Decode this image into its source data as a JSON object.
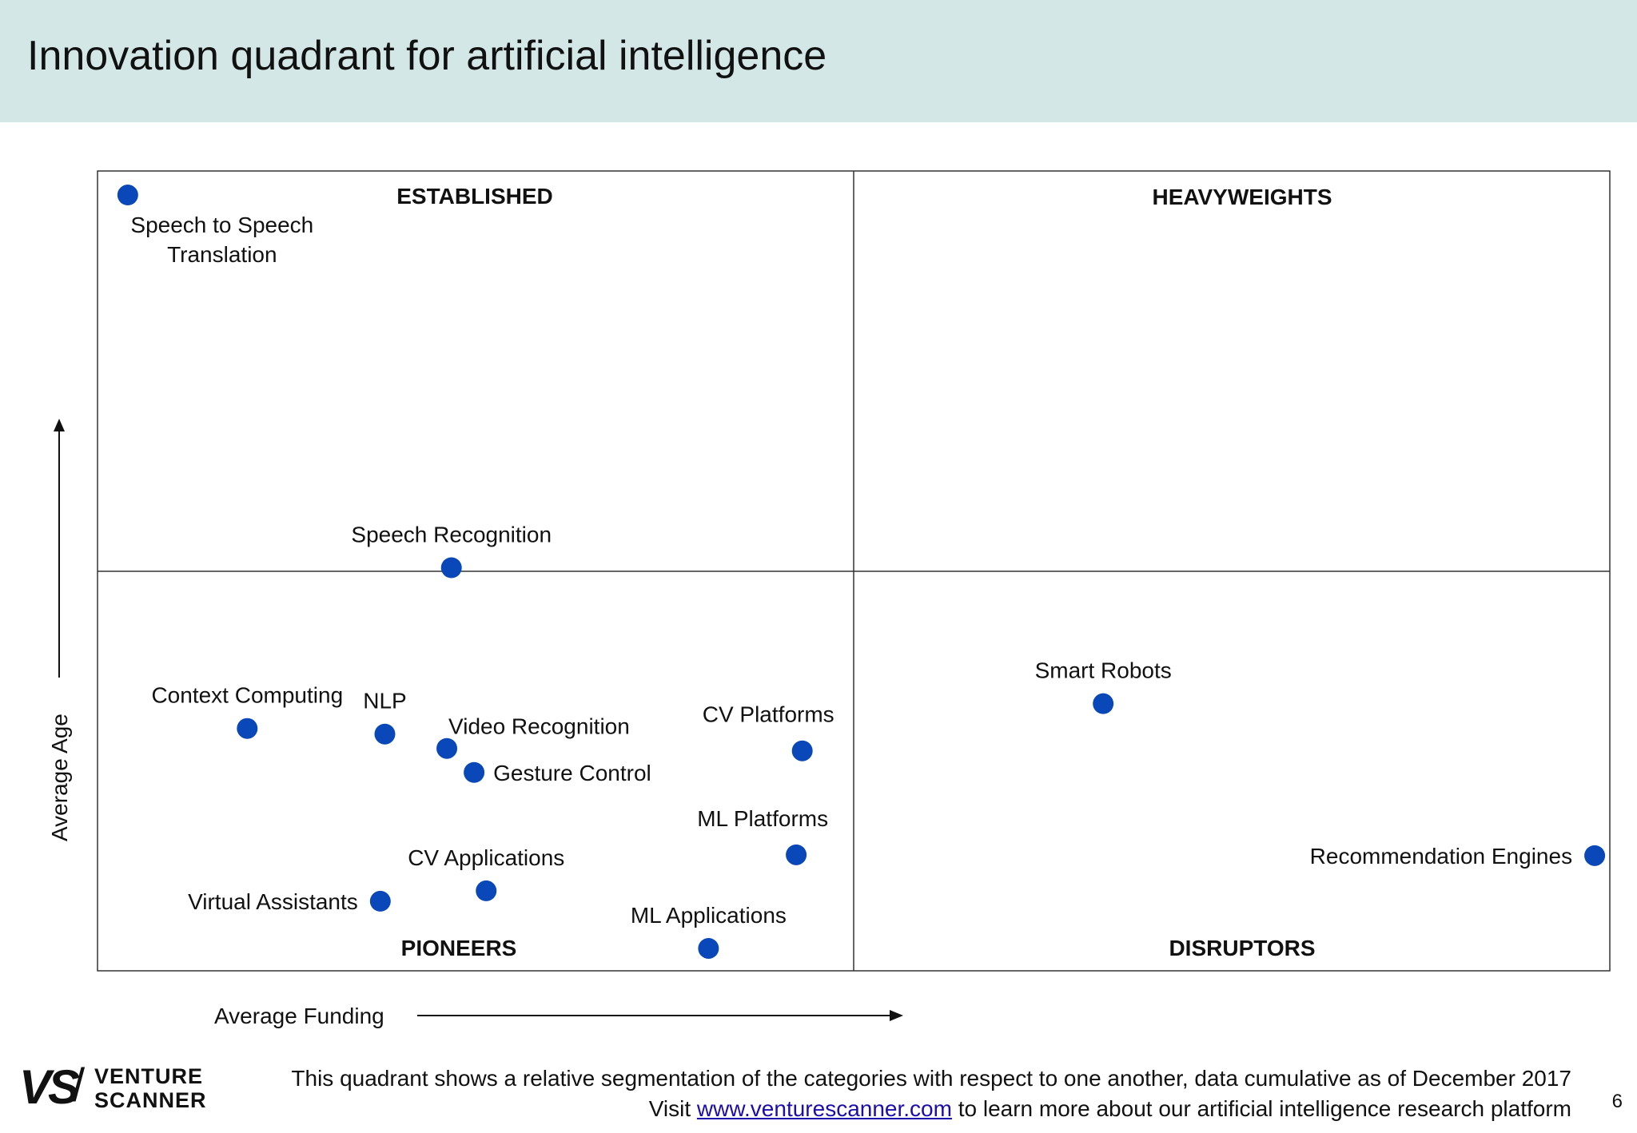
{
  "header": {
    "title": "Innovation quadrant for artificial intelligence"
  },
  "chart_data": {
    "type": "scatter",
    "title": "Innovation quadrant for artificial intelligence",
    "xlabel": "Average Funding",
    "ylabel": "Average Age",
    "xlim": [
      0,
      100
    ],
    "ylim": [
      0,
      100
    ],
    "grid": false,
    "quadrants": {
      "top_left": "ESTABLISHED",
      "top_right": "HEAVYWEIGHTS",
      "bottom_left": "PIONEERS",
      "bottom_right": "DISRUPTORS"
    },
    "points": [
      {
        "label": "Speech to Speech",
        "label2": "Translation",
        "x": 2.0,
        "y": 97.0,
        "anchor": "below"
      },
      {
        "label": "Speech Recognition",
        "x": 23.4,
        "y": 50.4,
        "anchor": "above"
      },
      {
        "label": "Context Computing",
        "x": 9.9,
        "y": 30.3,
        "anchor": "above"
      },
      {
        "label": "NLP",
        "x": 19.0,
        "y": 29.6,
        "anchor": "above"
      },
      {
        "label": "Video Recognition",
        "x": 23.1,
        "y": 27.8,
        "anchor": "above-right"
      },
      {
        "label": "Gesture Control",
        "x": 24.9,
        "y": 24.8,
        "anchor": "right"
      },
      {
        "label": "CV Platforms",
        "x": 46.6,
        "y": 27.5,
        "anchor": "above-left"
      },
      {
        "label": "ML Platforms",
        "x": 46.2,
        "y": 14.5,
        "anchor": "above-left"
      },
      {
        "label": "CV Applications",
        "x": 25.7,
        "y": 10.0,
        "anchor": "above"
      },
      {
        "label": "Virtual Assistants",
        "x": 18.7,
        "y": 8.7,
        "anchor": "left"
      },
      {
        "label": "ML Applications",
        "x": 40.4,
        "y": 2.8,
        "anchor": "above"
      },
      {
        "label": "Smart Robots",
        "x": 66.5,
        "y": 33.4,
        "anchor": "above"
      },
      {
        "label": "Recommendation Engines",
        "x": 99.0,
        "y": 14.4,
        "anchor": "left"
      }
    ]
  },
  "footer": {
    "line1": "This quadrant shows a relative segmentation of the categories with respect to one another, data cumulative as of December 2017",
    "line2_pre": "Visit ",
    "link": "www.venturescanner.com",
    "line2_post": " to learn more about our artificial intelligence research platform",
    "page": "6"
  },
  "logo": {
    "mark": "VS",
    "word1": "VENTURE",
    "word2": "SCANNER"
  },
  "colors": {
    "header_bg": "#d3e8e6",
    "dot": "#0a47b8",
    "link": "#1a0dab"
  }
}
